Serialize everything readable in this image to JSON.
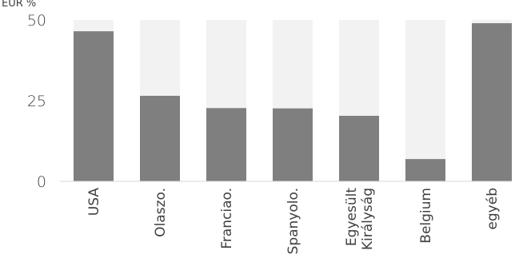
{
  "chart_data": {
    "type": "bar",
    "stacked_background": true,
    "unit_label": "EUR %",
    "categories": [
      "USA",
      "Olaszo.",
      "Franciao.",
      "Spanyolo.",
      "Egyesült\nKirályság",
      "Belgium",
      "egyéb"
    ],
    "values": [
      46.5,
      26.5,
      22.7,
      22.6,
      20.3,
      6.9,
      49.0
    ],
    "background_max": 50,
    "ylim": [
      0,
      50
    ],
    "yticks": [
      0,
      25,
      50
    ],
    "colors": {
      "bar": "#7f7f7f",
      "background": "#f2f2f2",
      "axis": "#d9d9d9",
      "text": "#404040"
    }
  }
}
